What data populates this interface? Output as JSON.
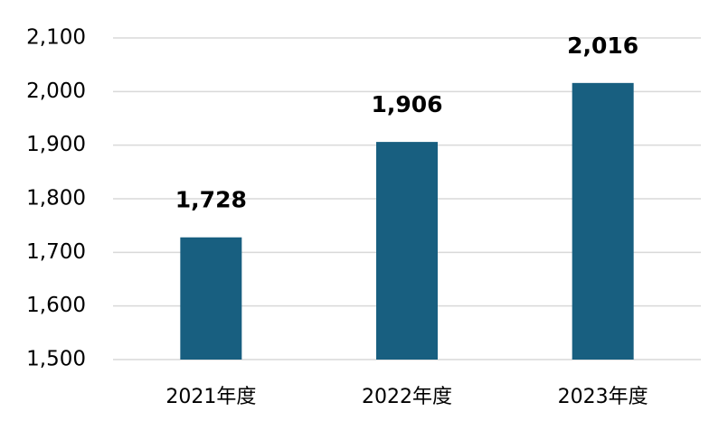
{
  "chart_data": {
    "type": "bar",
    "categories": [
      "2021年度",
      "2022年度",
      "2023年度"
    ],
    "values": [
      1728,
      1906,
      2016
    ],
    "value_labels": [
      "1,728",
      "1,906",
      "2,016"
    ],
    "color": "#185f80",
    "ylim": [
      1500,
      2100
    ],
    "yticks": [
      {
        "value": 1500,
        "label": "1,500"
      },
      {
        "value": 1600,
        "label": "1,600"
      },
      {
        "value": 1700,
        "label": "1,700"
      },
      {
        "value": 1800,
        "label": "1,800"
      },
      {
        "value": 1900,
        "label": "1,900"
      },
      {
        "value": 2000,
        "label": "2,000"
      },
      {
        "value": 2100,
        "label": "2,100"
      }
    ],
    "grid": true
  }
}
